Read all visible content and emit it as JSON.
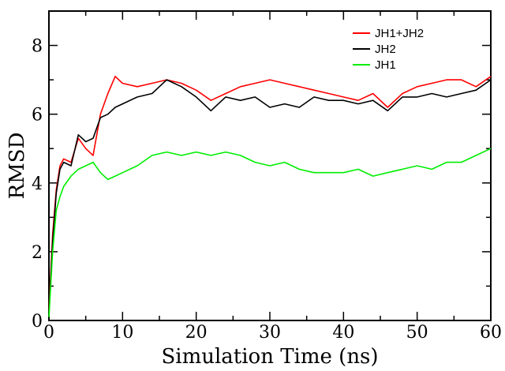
{
  "chart_data": {
    "type": "line",
    "xlabel": "Simulation Time (ns)",
    "ylabel": "RMSD",
    "xlim": [
      0,
      60
    ],
    "ylim": [
      0,
      9
    ],
    "x_ticks": [
      0,
      10,
      20,
      30,
      40,
      50,
      60
    ],
    "y_ticks": [
      0,
      2,
      4,
      6,
      8
    ],
    "x_tick_labels": [
      "0",
      "10",
      "20",
      "30",
      "40",
      "50",
      "60"
    ],
    "y_tick_labels": [
      "0",
      "2",
      "4",
      "6",
      "8"
    ],
    "grid": false,
    "legend_position": "top-right",
    "series": [
      {
        "name": "JH1+JH2",
        "color": "#ff0000",
        "x": [
          0,
          0.5,
          1,
          1.5,
          2,
          3,
          4,
          5,
          6,
          7,
          8,
          9,
          10,
          12,
          14,
          16,
          18,
          20,
          22,
          24,
          26,
          28,
          30,
          32,
          34,
          36,
          38,
          40,
          42,
          44,
          46,
          48,
          50,
          52,
          54,
          56,
          58,
          60
        ],
        "y": [
          0.3,
          2.5,
          3.8,
          4.5,
          4.7,
          4.6,
          5.3,
          5.0,
          4.8,
          6.0,
          6.6,
          7.1,
          6.9,
          6.8,
          6.9,
          7.0,
          6.9,
          6.7,
          6.4,
          6.6,
          6.8,
          6.9,
          7.0,
          6.9,
          6.8,
          6.7,
          6.6,
          6.5,
          6.4,
          6.6,
          6.2,
          6.6,
          6.8,
          6.9,
          7.0,
          7.0,
          6.8,
          7.1
        ]
      },
      {
        "name": "JH2",
        "color": "#000000",
        "x": [
          0,
          0.5,
          1,
          1.5,
          2,
          3,
          4,
          5,
          6,
          7,
          8,
          9,
          10,
          12,
          14,
          16,
          18,
          20,
          22,
          24,
          26,
          28,
          30,
          32,
          34,
          36,
          38,
          40,
          42,
          44,
          46,
          48,
          50,
          52,
          54,
          56,
          58,
          60
        ],
        "y": [
          0.2,
          2.3,
          3.7,
          4.4,
          4.6,
          4.5,
          5.4,
          5.2,
          5.3,
          5.9,
          6.0,
          6.2,
          6.3,
          6.5,
          6.6,
          7.0,
          6.8,
          6.5,
          6.1,
          6.5,
          6.4,
          6.5,
          6.2,
          6.3,
          6.2,
          6.5,
          6.4,
          6.4,
          6.3,
          6.4,
          6.1,
          6.5,
          6.5,
          6.6,
          6.5,
          6.6,
          6.7,
          7.0
        ]
      },
      {
        "name": "JH1",
        "color": "#00ee00",
        "x": [
          0,
          0.5,
          1,
          1.5,
          2,
          3,
          4,
          5,
          6,
          7,
          8,
          9,
          10,
          12,
          14,
          16,
          18,
          20,
          22,
          24,
          26,
          28,
          30,
          32,
          34,
          36,
          38,
          40,
          42,
          44,
          46,
          48,
          50,
          52,
          54,
          56,
          58,
          60
        ],
        "y": [
          0.1,
          2.0,
          3.2,
          3.6,
          3.9,
          4.2,
          4.4,
          4.5,
          4.6,
          4.3,
          4.1,
          4.2,
          4.3,
          4.5,
          4.8,
          4.9,
          4.8,
          4.9,
          4.8,
          4.9,
          4.8,
          4.6,
          4.5,
          4.6,
          4.4,
          4.3,
          4.3,
          4.3,
          4.4,
          4.2,
          4.3,
          4.4,
          4.5,
          4.4,
          4.6,
          4.6,
          4.8,
          5.0
        ]
      }
    ]
  }
}
